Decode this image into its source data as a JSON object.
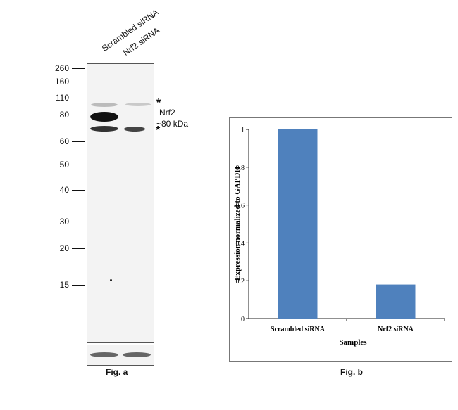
{
  "blot": {
    "lanes": [
      "Scrambled siRNA",
      "Nrf2 siRNA"
    ],
    "mw_markers": [
      "260",
      "160",
      "110",
      "80",
      "60",
      "50",
      "40",
      "30",
      "20",
      "15"
    ],
    "target_label": "Nrf2",
    "target_size": "~80 kDa",
    "nonspecific_marker": "*",
    "caption": "Fig. a"
  },
  "chart_caption": "Fig. b",
  "chart_data": {
    "type": "bar",
    "categories": [
      "Scrambled siRNA",
      "Nrf2 siRNA"
    ],
    "values": [
      1.0,
      0.18
    ],
    "xlabel": "Samples",
    "ylabel": "Expression normalized to  GAPDH",
    "ylim": [
      0,
      1
    ],
    "yticks": [
      0,
      0.2,
      0.4,
      0.6,
      0.8,
      1
    ],
    "ytick_labels": [
      "0",
      "0.2",
      "0.4",
      "0.6",
      "0.8",
      "1"
    ],
    "grid": false,
    "bar_color": "#4f81bd"
  }
}
